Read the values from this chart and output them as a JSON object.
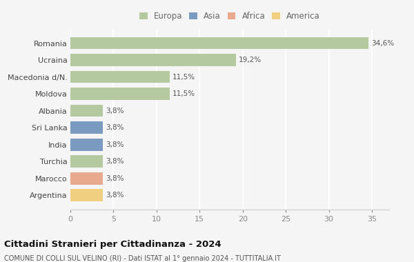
{
  "countries": [
    "Romania",
    "Ucraina",
    "Macedonia d/N.",
    "Moldova",
    "Albania",
    "Sri Lanka",
    "India",
    "Turchia",
    "Marocco",
    "Argentina"
  ],
  "values": [
    34.6,
    19.2,
    11.5,
    11.5,
    3.8,
    3.8,
    3.8,
    3.8,
    3.8,
    3.8
  ],
  "labels": [
    "34,6%",
    "19,2%",
    "11,5%",
    "11,5%",
    "3,8%",
    "3,8%",
    "3,8%",
    "3,8%",
    "3,8%",
    "3,8%"
  ],
  "continents": [
    "Europa",
    "Europa",
    "Europa",
    "Europa",
    "Europa",
    "Asia",
    "Asia",
    "Europa",
    "Africa",
    "America"
  ],
  "colors": {
    "Europa": "#b5c9a0",
    "Asia": "#7a9bbf",
    "Africa": "#e8a98c",
    "America": "#f0d080"
  },
  "legend_order": [
    "Europa",
    "Asia",
    "Africa",
    "America"
  ],
  "title": "Cittadini Stranieri per Cittadinanza - 2024",
  "subtitle": "COMUNE DI COLLI SUL VELINO (RI) - Dati ISTAT al 1° gennaio 2024 - TUTTITALIA.IT",
  "xlim": [
    0,
    37
  ],
  "xticks": [
    0,
    5,
    10,
    15,
    20,
    25,
    30,
    35
  ],
  "bg_color": "#f5f5f5",
  "grid_color": "#ffffff",
  "bar_height": 0.72
}
